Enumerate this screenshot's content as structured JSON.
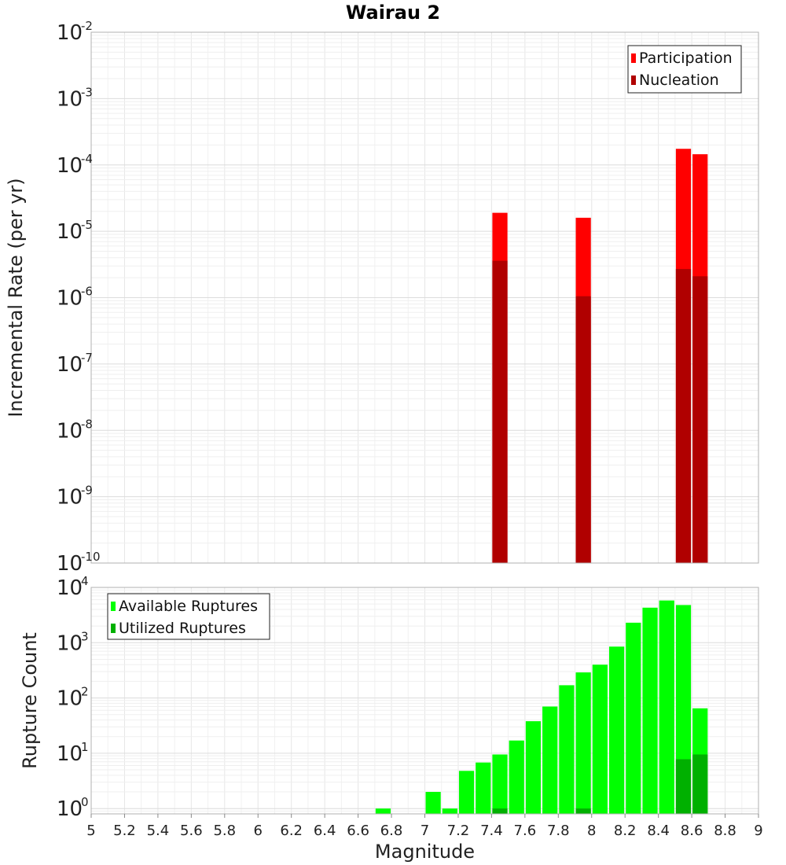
{
  "figure": {
    "title": "Wairau 2"
  },
  "chart_data": [
    {
      "type": "bar",
      "title": "Wairau 2",
      "ylabel": "Incremental Rate (per yr)",
      "xlabel": "",
      "xlim": [
        5,
        9
      ],
      "ylim": [
        1e-10,
        0.01
      ],
      "yscale": "log",
      "grid": true,
      "bin_width": 0.1,
      "legend_position": "top-right",
      "series": [
        {
          "name": "Participation",
          "color": "#ff0000",
          "x": [
            7.45,
            7.95,
            8.55,
            8.65
          ],
          "values": [
            1.9e-05,
            1.6e-05,
            0.000175,
            0.000145
          ]
        },
        {
          "name": "Nucleation",
          "color": "#b00000",
          "x": [
            7.45,
            7.95,
            8.55,
            8.65
          ],
          "values": [
            3.6e-06,
            1.05e-06,
            2.7e-06,
            2.1e-06
          ]
        }
      ],
      "yticks": [
        {
          "base": "10",
          "exp": "-2",
          "value": 0.01
        },
        {
          "base": "10",
          "exp": "-3",
          "value": 0.001
        },
        {
          "base": "10",
          "exp": "-4",
          "value": 0.0001
        },
        {
          "base": "10",
          "exp": "-5",
          "value": 1e-05
        },
        {
          "base": "10",
          "exp": "-6",
          "value": 1e-06
        },
        {
          "base": "10",
          "exp": "-7",
          "value": 1e-07
        },
        {
          "base": "10",
          "exp": "-8",
          "value": 1e-08
        },
        {
          "base": "10",
          "exp": "-9",
          "value": 1e-09
        },
        {
          "base": "10",
          "exp": "-10",
          "value": 1e-10
        }
      ]
    },
    {
      "type": "bar",
      "title": "",
      "ylabel": "Rupture Count",
      "xlabel": "Magnitude",
      "xlim": [
        5,
        9
      ],
      "ylim": [
        0.8,
        10000
      ],
      "yscale": "log",
      "grid": true,
      "bin_width": 0.1,
      "legend_position": "top-left",
      "series": [
        {
          "name": "Available Ruptures",
          "color": "#00ff00",
          "x": [
            6.75,
            7.05,
            7.15,
            7.25,
            7.35,
            7.45,
            7.55,
            7.65,
            7.75,
            7.85,
            7.95,
            8.05,
            8.15,
            8.25,
            8.35,
            8.45,
            8.55,
            8.65
          ],
          "values": [
            1,
            2,
            1,
            4.8,
            6.8,
            9.5,
            17,
            38,
            70,
            170,
            290,
            400,
            850,
            2300,
            4300,
            5800,
            4800,
            65
          ]
        },
        {
          "name": "Utilized Ruptures",
          "color": "#00b000",
          "x": [
            7.45,
            7.95,
            8.55,
            8.65
          ],
          "values": [
            1,
            1,
            7.8,
            9.5
          ]
        }
      ],
      "yticks": [
        {
          "base": "10",
          "exp": "4",
          "value": 10000
        },
        {
          "base": "10",
          "exp": "3",
          "value": 1000
        },
        {
          "base": "10",
          "exp": "2",
          "value": 100
        },
        {
          "base": "10",
          "exp": "1",
          "value": 10
        },
        {
          "base": "10",
          "exp": "0",
          "value": 1
        }
      ],
      "xticks": [
        "5",
        "5.2",
        "5.4",
        "5.6",
        "5.8",
        "6",
        "6.2",
        "6.4",
        "6.6",
        "6.8",
        "7",
        "7.2",
        "7.4",
        "7.6",
        "7.8",
        "8",
        "8.2",
        "8.4",
        "8.6",
        "8.8",
        "9"
      ]
    }
  ]
}
